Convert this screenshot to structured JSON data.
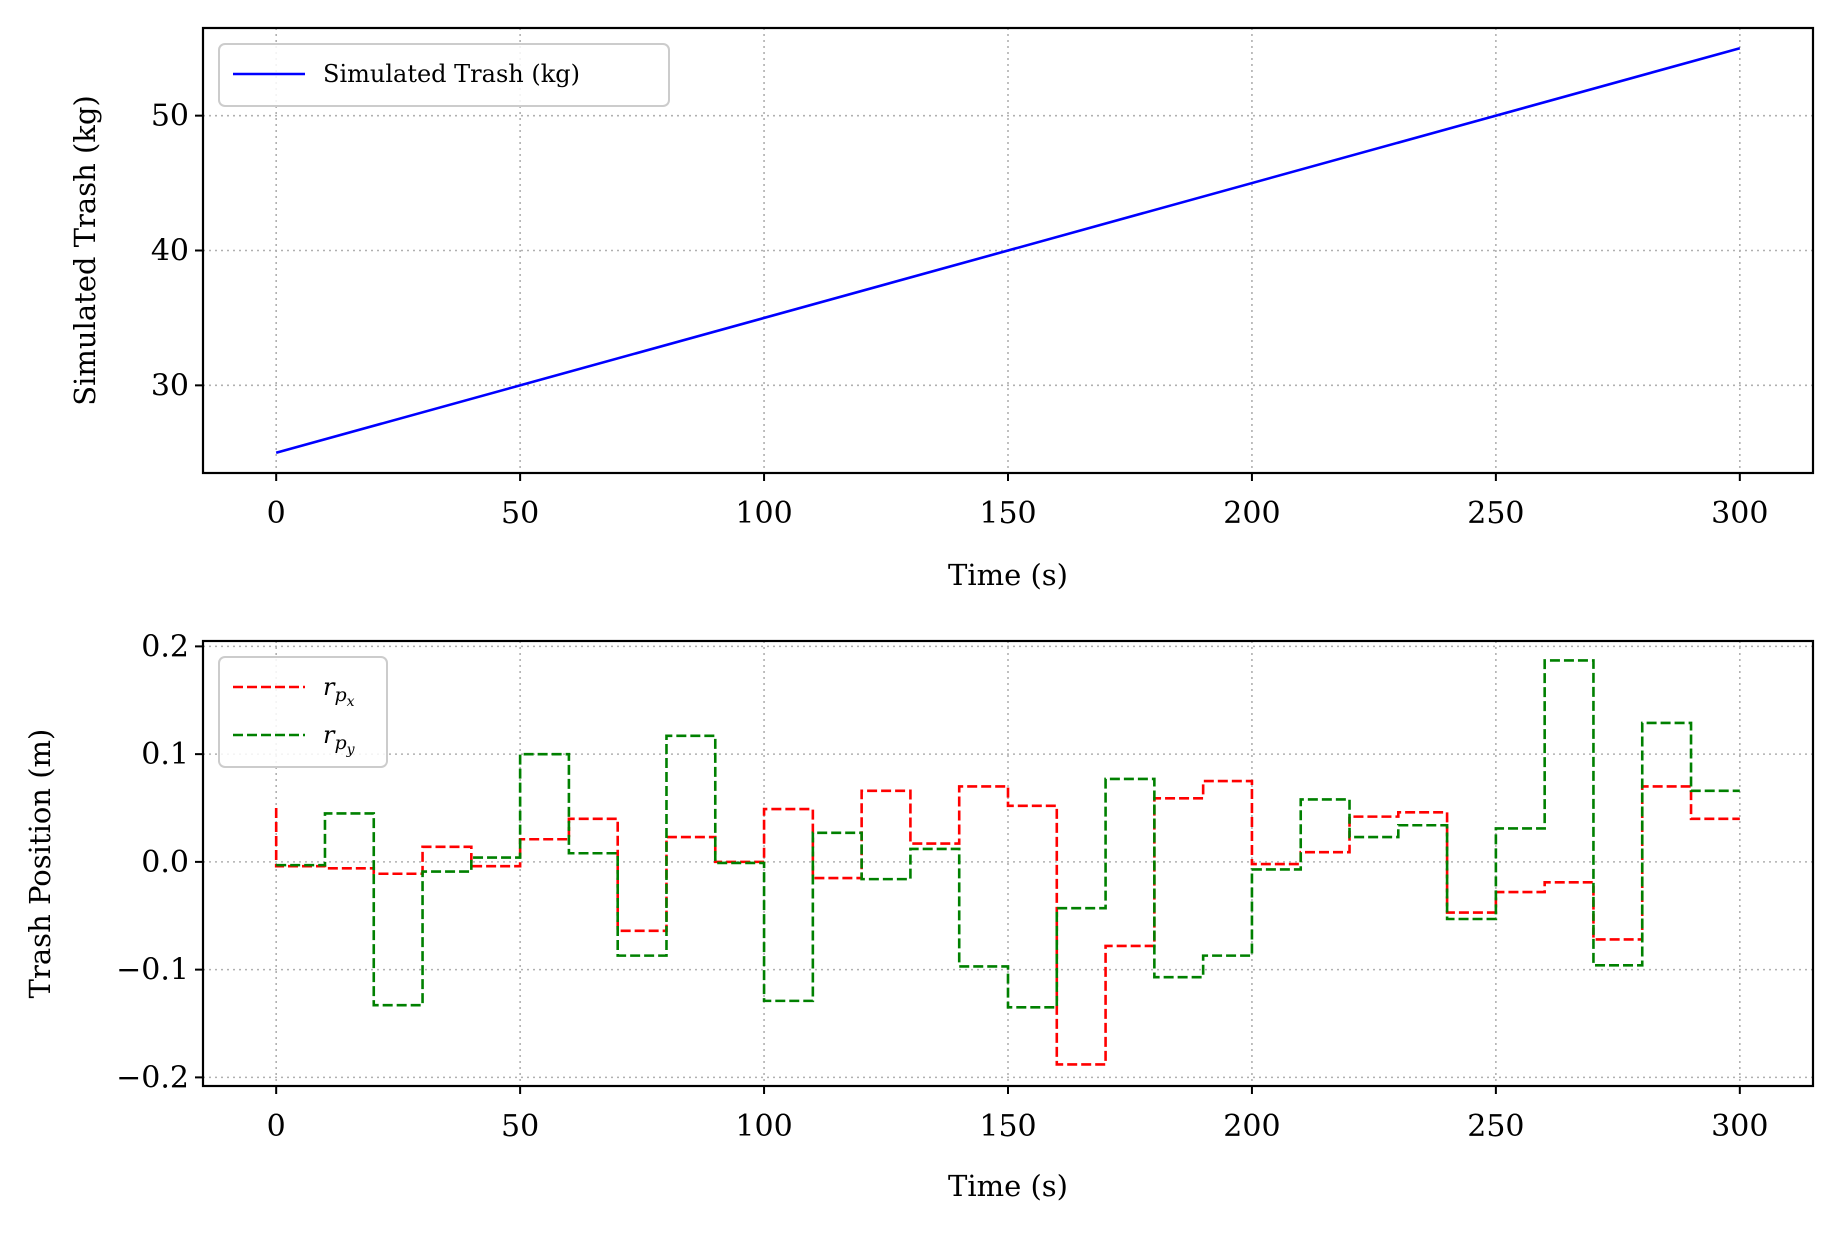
{
  "chart_data": [
    {
      "type": "line",
      "xlabel": "Time (s)",
      "ylabel": "Simulated Trash (kg)",
      "xlim": [
        -15,
        315
      ],
      "ylim": [
        23.5,
        56.5
      ],
      "xticks": [
        0,
        50,
        100,
        150,
        200,
        250,
        300
      ],
      "yticks": [
        30,
        40,
        50
      ],
      "grid": true,
      "legend_position": "upper-left",
      "series": [
        {
          "name": "Simulated Trash (kg)",
          "color": "#0000ff",
          "style": "solid",
          "x": [
            0,
            300
          ],
          "y": [
            25,
            55
          ]
        }
      ]
    },
    {
      "type": "line",
      "xlabel": "Time (s)",
      "ylabel": "Trash Position (m)",
      "xlim": [
        -15,
        315
      ],
      "ylim": [
        -0.208,
        0.205
      ],
      "xticks": [
        0,
        50,
        100,
        150,
        200,
        250,
        300
      ],
      "yticks": [
        -0.2,
        -0.1,
        0.0,
        0.1,
        0.2
      ],
      "ytick_labels": [
        "−0.2",
        "−0.1",
        "0.0",
        "0.1",
        "0.2"
      ],
      "grid": true,
      "legend_position": "upper-left",
      "step_breaks": [
        0,
        10,
        20,
        30,
        40,
        50,
        60,
        70,
        80,
        90,
        100,
        110,
        120,
        130,
        140,
        150,
        160,
        170,
        180,
        190,
        200,
        210,
        220,
        230,
        240,
        250,
        260,
        270,
        280,
        290,
        300
      ],
      "series": [
        {
          "name": "r_px",
          "color": "#ff0000",
          "style": "dashed",
          "initial": 0.05,
          "values": [
            -0.004,
            -0.006,
            -0.011,
            0.014,
            -0.004,
            0.021,
            0.04,
            -0.064,
            0.023,
            0.0,
            0.049,
            -0.015,
            0.066,
            0.017,
            0.07,
            0.052,
            -0.188,
            -0.078,
            0.059,
            0.075,
            -0.002,
            0.009,
            0.042,
            0.046,
            -0.047,
            -0.028,
            -0.019,
            -0.072,
            0.07,
            0.04
          ]
        },
        {
          "name": "r_py",
          "color": "#008000",
          "style": "dashed",
          "values": [
            -0.003,
            0.045,
            -0.133,
            -0.009,
            0.004,
            0.1,
            0.008,
            -0.087,
            0.117,
            -0.001,
            -0.129,
            0.027,
            -0.016,
            0.012,
            -0.097,
            -0.135,
            -0.043,
            0.077,
            -0.107,
            -0.087,
            -0.007,
            0.058,
            0.023,
            0.034,
            -0.053,
            0.031,
            0.187,
            -0.096,
            0.129,
            0.066
          ]
        }
      ]
    }
  ]
}
